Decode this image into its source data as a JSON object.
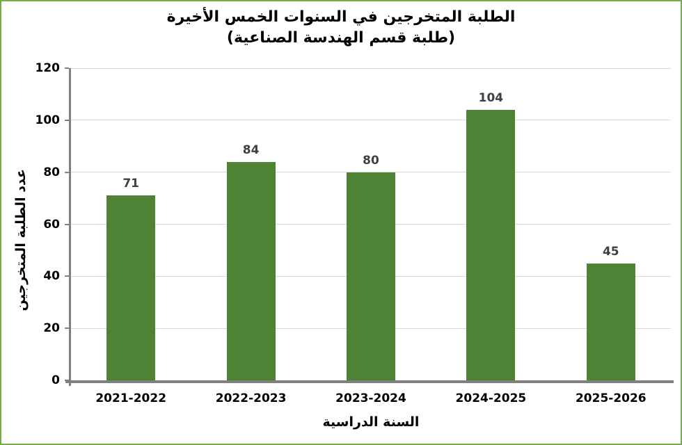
{
  "chart_data": {
    "type": "bar",
    "title_line1": "الطلبة المتخرجين في السنوات الخمس الأخيرة",
    "title_line2": "(طلبة قسم الهندسة الصناعية)",
    "xlabel": "السنة الدراسية",
    "ylabel": "عدد الطلبة المتخرجين",
    "categories": [
      "2021-2022",
      "2022-2023",
      "2023-2024",
      "2024-2025",
      "2025-2026"
    ],
    "values": [
      71,
      84,
      80,
      104,
      45
    ],
    "ylim": [
      0,
      120
    ],
    "ytick_step": 20,
    "ytick_labels": [
      "0",
      "20",
      "40",
      "60",
      "80",
      "100",
      "120"
    ],
    "grid": true,
    "legend": "none",
    "bar_color": "#4E8234",
    "value_label_color": "#404040",
    "axis_color": "#808080",
    "gridline_color": "#D9D9D9",
    "tick_label_color": "#000000",
    "page_border_color": "#70AD47",
    "background_color": "#FFFFFF"
  }
}
